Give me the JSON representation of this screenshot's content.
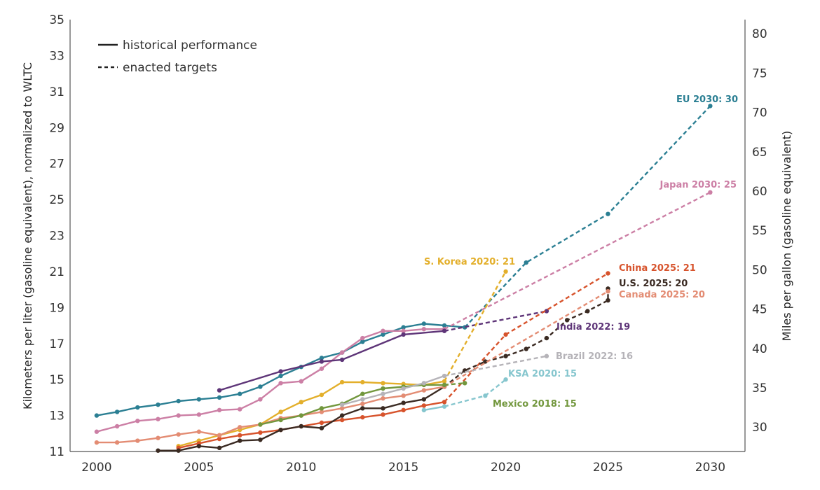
{
  "chart_data": {
    "type": "line",
    "title": "",
    "ylabel_left": "Kilometers per liter (gasoline equivalent), normalized to WLTC",
    "ylabel_right": "Miles per gallon (gasoline equivalent)",
    "xlabel": "",
    "xlim": [
      1998.7,
      2031.7
    ],
    "ylim": [
      11,
      35
    ],
    "y2lim": [
      26.9,
      81.8
    ],
    "x_ticks": [
      2000,
      2005,
      2010,
      2015,
      2020,
      2025,
      2030
    ],
    "y_ticks": [
      11,
      13,
      15,
      17,
      19,
      21,
      23,
      25,
      27,
      29,
      31,
      33,
      35
    ],
    "y2_ticks": [
      30,
      35,
      40,
      45,
      50,
      55,
      60,
      65,
      70,
      75,
      80
    ],
    "grid": false,
    "legend": {
      "position": "top-left",
      "entries": [
        {
          "style": "solid",
          "label": "historical performance"
        },
        {
          "style": "dashed",
          "label": "enacted targets"
        }
      ]
    },
    "series": [
      {
        "name": "EU",
        "label": "EU 2030: 30",
        "color": "#2B7F93",
        "historical": [
          [
            2000,
            13.0
          ],
          [
            2001,
            13.2
          ],
          [
            2002,
            13.45
          ],
          [
            2003,
            13.6
          ],
          [
            2004,
            13.8
          ],
          [
            2005,
            13.9
          ],
          [
            2006,
            14.0
          ],
          [
            2007,
            14.2
          ],
          [
            2008,
            14.6
          ],
          [
            2009,
            15.2
          ],
          [
            2010,
            15.7
          ],
          [
            2011,
            16.2
          ],
          [
            2012,
            16.5
          ],
          [
            2013,
            17.1
          ],
          [
            2014,
            17.5
          ],
          [
            2015,
            17.9
          ],
          [
            2016,
            18.1
          ],
          [
            2017,
            18.0
          ],
          [
            2018,
            17.9
          ]
        ],
        "target": [
          [
            2018,
            17.9
          ],
          [
            2021,
            21.5
          ],
          [
            2025,
            24.2
          ],
          [
            2030,
            30.2
          ]
        ]
      },
      {
        "name": "Japan",
        "label": "Japan 2030: 25",
        "color": "#CC7FA5",
        "historical": [
          [
            2000,
            12.1
          ],
          [
            2001,
            12.4
          ],
          [
            2002,
            12.7
          ],
          [
            2003,
            12.8
          ],
          [
            2004,
            13.0
          ],
          [
            2005,
            13.05
          ],
          [
            2006,
            13.3
          ],
          [
            2007,
            13.35
          ],
          [
            2008,
            13.9
          ],
          [
            2009,
            14.8
          ],
          [
            2010,
            14.9
          ],
          [
            2011,
            15.6
          ],
          [
            2012,
            16.5
          ],
          [
            2013,
            17.3
          ],
          [
            2014,
            17.7
          ],
          [
            2015,
            17.7
          ],
          [
            2016,
            17.8
          ],
          [
            2017,
            17.8
          ]
        ],
        "target": [
          [
            2017,
            17.8
          ],
          [
            2030,
            25.4
          ]
        ]
      },
      {
        "name": "India",
        "label": "India 2022: 19",
        "color": "#5E3578",
        "historical": [
          [
            2006,
            14.4
          ],
          [
            2009,
            15.45
          ],
          [
            2011,
            16.0
          ],
          [
            2012,
            16.1
          ],
          [
            2015,
            17.5
          ],
          [
            2017,
            17.7
          ]
        ],
        "target": [
          [
            2017,
            17.7
          ],
          [
            2022,
            18.8
          ]
        ]
      },
      {
        "name": "S. Korea",
        "label": "S. Korea 2020: 21",
        "color": "#E3AF2B",
        "historical": [
          [
            2004,
            11.3
          ],
          [
            2005,
            11.6
          ],
          [
            2006,
            11.9
          ],
          [
            2007,
            12.2
          ],
          [
            2008,
            12.5
          ],
          [
            2009,
            13.2
          ],
          [
            2010,
            13.75
          ],
          [
            2011,
            14.15
          ],
          [
            2012,
            14.85
          ],
          [
            2013,
            14.85
          ],
          [
            2014,
            14.8
          ],
          [
            2015,
            14.75
          ],
          [
            2016,
            14.7
          ],
          [
            2017,
            14.9
          ]
        ],
        "target": [
          [
            2017,
            14.9
          ],
          [
            2020,
            21.0
          ]
        ]
      },
      {
        "name": "China",
        "label": "China 2025: 21",
        "color": "#D7532C",
        "historical": [
          [
            2004,
            11.2
          ],
          [
            2005,
            11.45
          ],
          [
            2006,
            11.7
          ],
          [
            2007,
            11.9
          ],
          [
            2008,
            12.05
          ],
          [
            2009,
            12.2
          ],
          [
            2010,
            12.4
          ],
          [
            2011,
            12.6
          ],
          [
            2012,
            12.75
          ],
          [
            2013,
            12.9
          ],
          [
            2014,
            13.05
          ],
          [
            2015,
            13.3
          ],
          [
            2016,
            13.55
          ],
          [
            2017,
            13.75
          ]
        ],
        "target": [
          [
            2017,
            13.75
          ],
          [
            2020,
            17.5
          ],
          [
            2025,
            20.9
          ]
        ]
      },
      {
        "name": "U.S.",
        "label": "U.S. 2025: 20",
        "color": "#3A2A22",
        "historical": [
          [
            2003,
            11.05
          ],
          [
            2004,
            11.05
          ],
          [
            2005,
            11.3
          ],
          [
            2006,
            11.2
          ],
          [
            2007,
            11.6
          ],
          [
            2008,
            11.65
          ],
          [
            2009,
            12.2
          ],
          [
            2010,
            12.4
          ],
          [
            2011,
            12.3
          ],
          [
            2012,
            13.0
          ],
          [
            2013,
            13.4
          ],
          [
            2014,
            13.4
          ],
          [
            2015,
            13.7
          ],
          [
            2016,
            13.9
          ],
          [
            2017,
            14.6
          ]
        ],
        "target": [
          [
            2017,
            14.6
          ],
          [
            2018,
            15.5
          ],
          [
            2019,
            16.0
          ],
          [
            2020,
            16.3
          ],
          [
            2021,
            16.7
          ],
          [
            2022,
            17.3
          ],
          [
            2023,
            18.3
          ],
          [
            2024,
            18.8
          ],
          [
            2025,
            19.4
          ],
          [
            2025,
            20.05
          ]
        ]
      },
      {
        "name": "Canada",
        "label": "Canada 2025: 20",
        "color": "#E38C73",
        "historical": [
          [
            2000,
            11.5
          ],
          [
            2001,
            11.5
          ],
          [
            2002,
            11.6
          ],
          [
            2003,
            11.75
          ],
          [
            2004,
            11.95
          ],
          [
            2005,
            12.1
          ],
          [
            2006,
            11.9
          ],
          [
            2007,
            12.35
          ],
          [
            2008,
            12.5
          ],
          [
            2009,
            12.85
          ],
          [
            2010,
            13.0
          ],
          [
            2011,
            13.2
          ],
          [
            2012,
            13.4
          ],
          [
            2013,
            13.65
          ],
          [
            2014,
            13.95
          ],
          [
            2015,
            14.1
          ],
          [
            2016,
            14.4
          ],
          [
            2017,
            14.6
          ]
        ],
        "target": [
          [
            2017,
            14.6
          ],
          [
            2025,
            19.9
          ]
        ]
      },
      {
        "name": "Mexico",
        "label": "Mexico 2018: 15",
        "color": "#72973D",
        "historical": [
          [
            2008,
            12.5
          ],
          [
            2009,
            12.75
          ],
          [
            2010,
            13.0
          ],
          [
            2011,
            13.4
          ],
          [
            2012,
            13.65
          ],
          [
            2013,
            14.2
          ],
          [
            2014,
            14.5
          ],
          [
            2015,
            14.6
          ],
          [
            2016,
            14.7
          ],
          [
            2017,
            14.7
          ]
        ],
        "target": [
          [
            2017,
            14.7
          ],
          [
            2018,
            14.8
          ]
        ]
      },
      {
        "name": "Brazil",
        "label": "Brazil 2022: 16",
        "color": "#B5B3B8",
        "historical": [
          [
            2012,
            13.6
          ],
          [
            2013,
            13.9
          ],
          [
            2014,
            14.2
          ],
          [
            2015,
            14.5
          ],
          [
            2016,
            14.8
          ],
          [
            2017,
            15.2
          ]
        ],
        "target": [
          [
            2017,
            15.2
          ],
          [
            2022,
            16.3
          ]
        ]
      },
      {
        "name": "KSA",
        "label": "KSA 2020: 15",
        "color": "#86C6CE",
        "historical": [
          [
            2016,
            13.3
          ],
          [
            2017,
            13.5
          ]
        ],
        "target": [
          [
            2017,
            13.5
          ],
          [
            2019,
            14.1
          ],
          [
            2020,
            15.0
          ]
        ]
      }
    ]
  }
}
